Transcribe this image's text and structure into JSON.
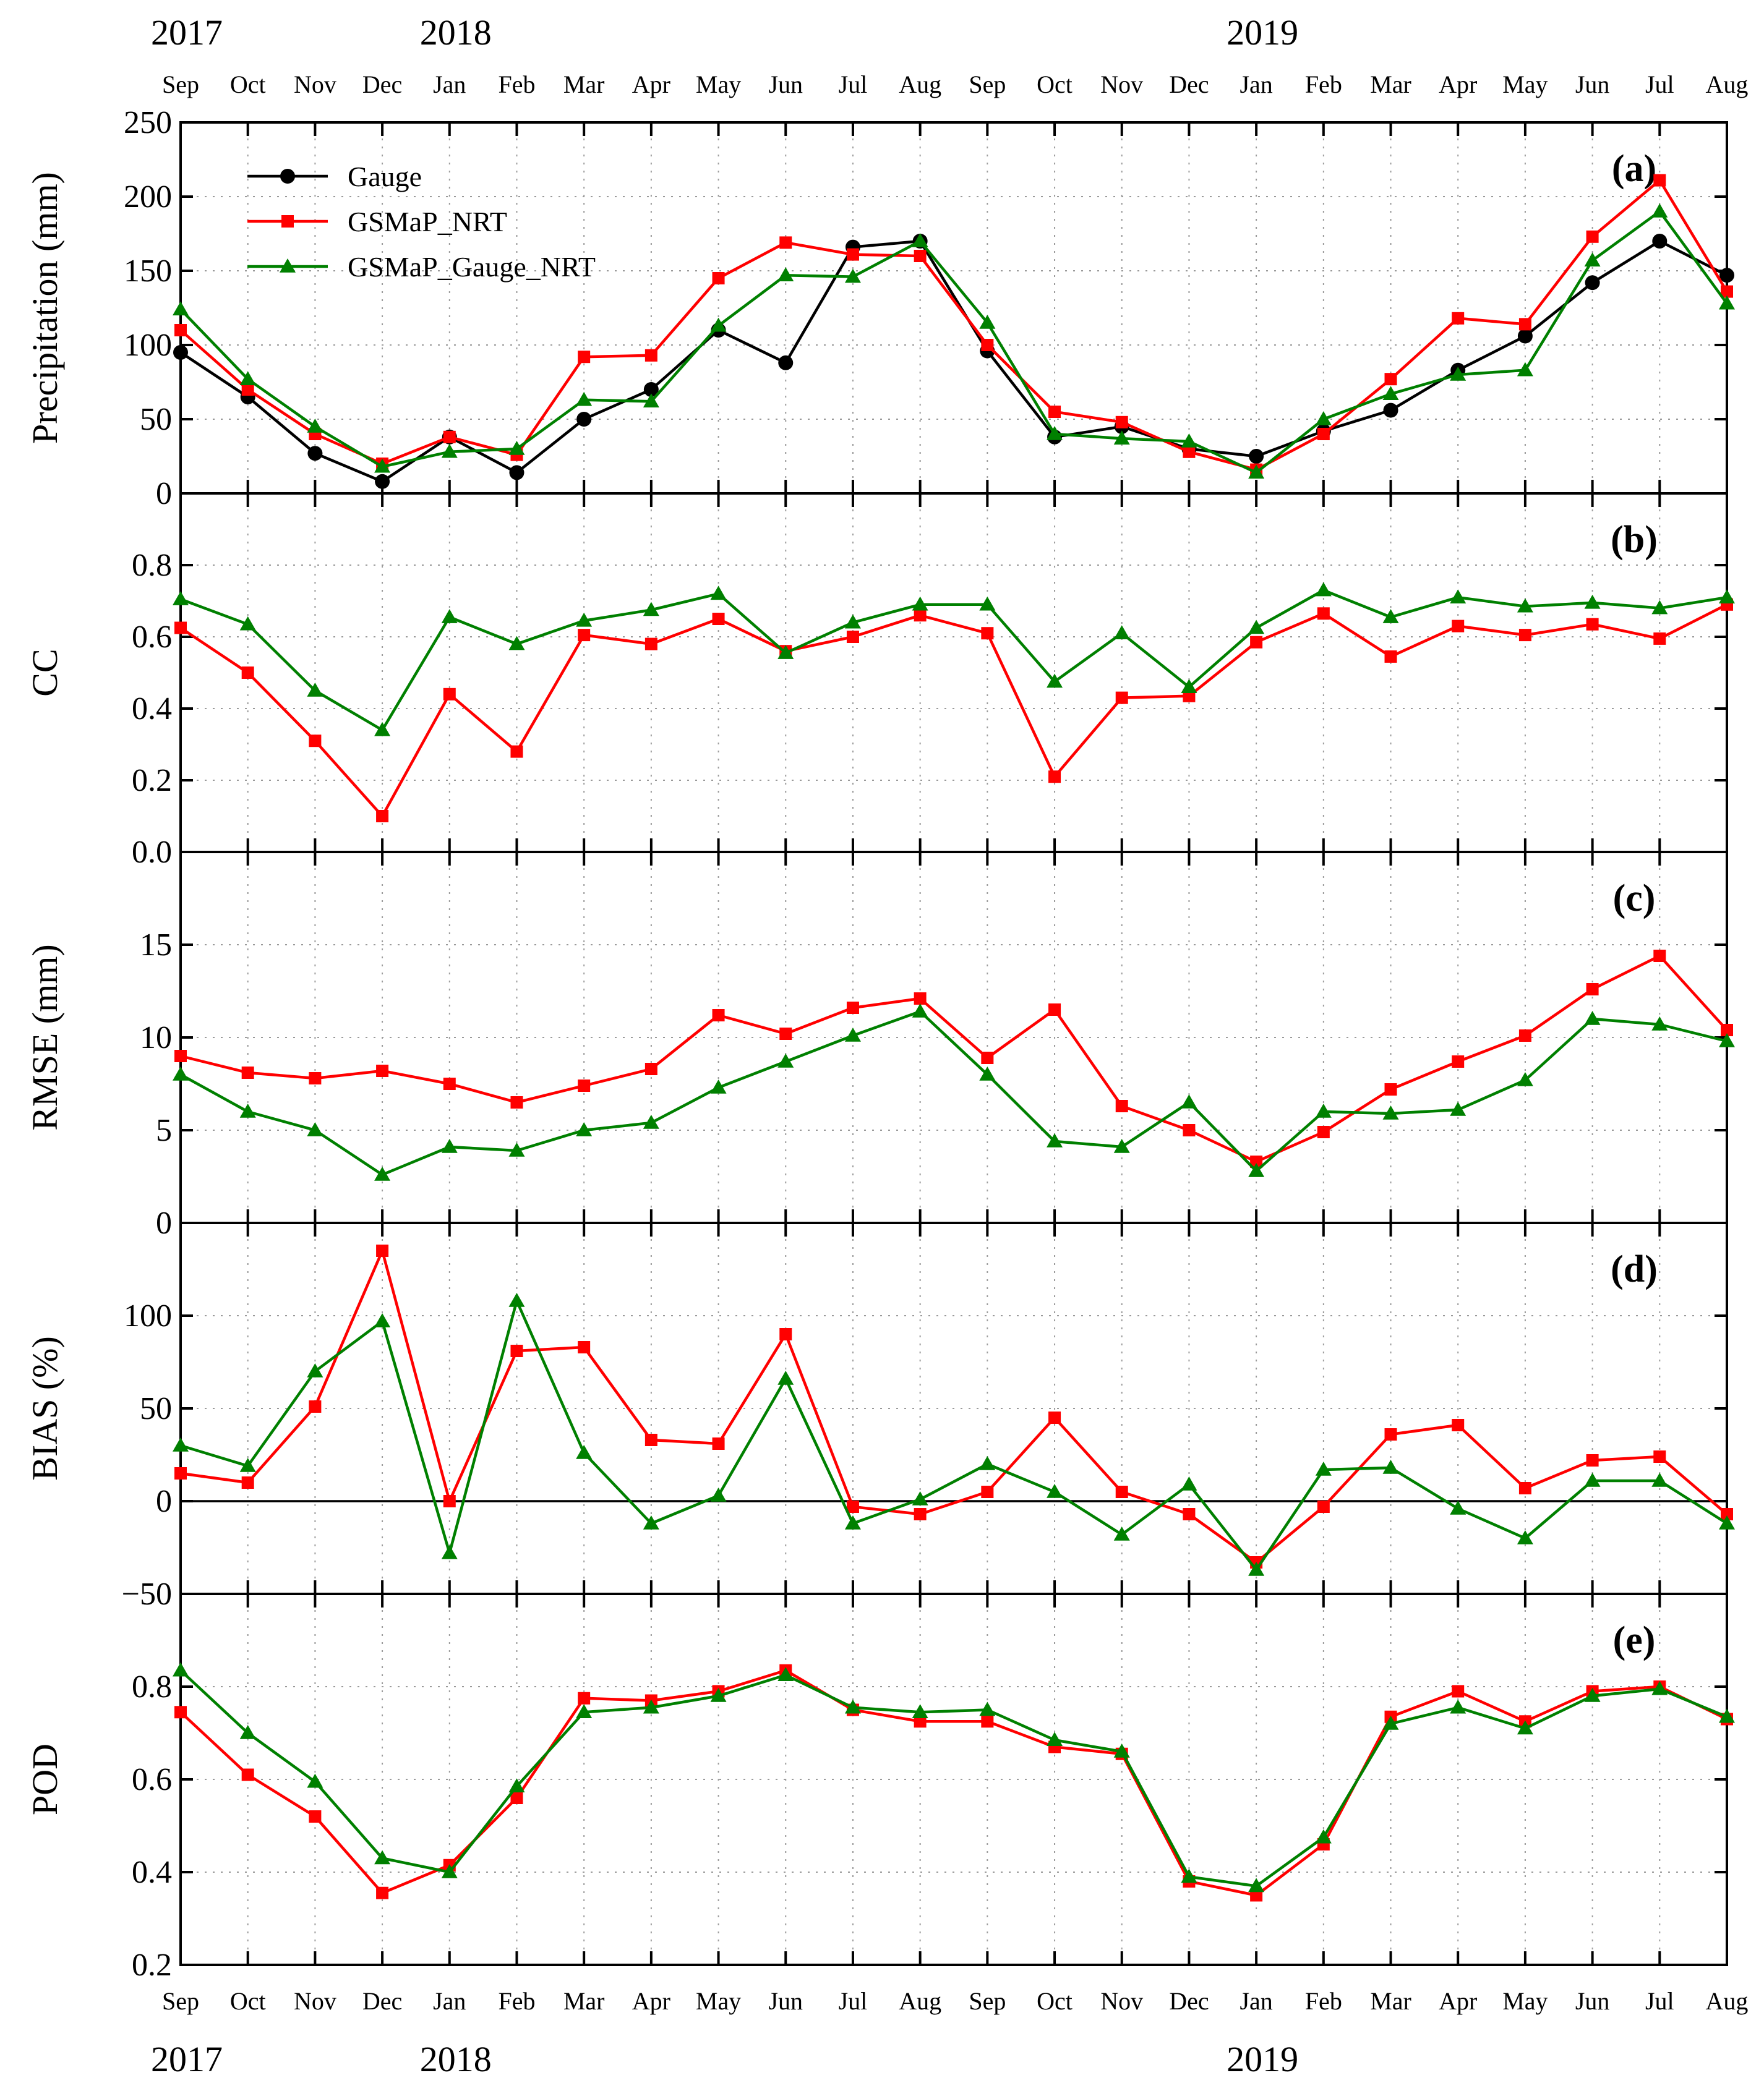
{
  "months": [
    "Sep",
    "Oct",
    "Nov",
    "Dec",
    "Jan",
    "Feb",
    "Mar",
    "Apr",
    "May",
    "Jun",
    "Jul",
    "Aug",
    "Sep",
    "Oct",
    "Nov",
    "Dec",
    "Jan",
    "Feb",
    "Mar",
    "Apr",
    "May",
    "Jun",
    "Jul",
    "Aug"
  ],
  "years": [
    {
      "label": "2017",
      "index": 0
    },
    {
      "label": "2018",
      "index": 4
    },
    {
      "label": "2019",
      "index": 16
    }
  ],
  "colors": {
    "gauge": "#000000",
    "nrt": "#ff0000",
    "gauge_nrt": "#008000"
  },
  "legend": [
    {
      "name": "Gauge",
      "color": "#000000",
      "marker": "circle"
    },
    {
      "name": "GSMaP_NRT",
      "color": "#ff0000",
      "marker": "square"
    },
    {
      "name": "GSMaP_Gauge_NRT",
      "color": "#008000",
      "marker": "triangle"
    }
  ],
  "chart_data": [
    {
      "type": "line",
      "tag": "(a)",
      "ylabel": "Precipitation (mm)",
      "ylim": [
        0,
        250
      ],
      "yticks": [
        0,
        50,
        100,
        150,
        200,
        250
      ],
      "ydecimals": 0,
      "legend_position": "top-left",
      "series": [
        {
          "name": "Gauge",
          "color": "#000000",
          "marker": "circle",
          "values": [
            95,
            65,
            27,
            8,
            38,
            14,
            50,
            70,
            110,
            88,
            166,
            170,
            96,
            38,
            45,
            30,
            25,
            42,
            56,
            83,
            106,
            142,
            170,
            147
          ]
        },
        {
          "name": "GSMaP_NRT",
          "color": "#ff0000",
          "marker": "square",
          "values": [
            110,
            70,
            40,
            20,
            38,
            26,
            92,
            93,
            145,
            169,
            161,
            160,
            100,
            55,
            48,
            28,
            16,
            40,
            77,
            118,
            114,
            173,
            211,
            136
          ]
        },
        {
          "name": "GSMaP_Gauge_NRT",
          "color": "#008000",
          "marker": "triangle",
          "values": [
            124,
            77,
            45,
            18,
            28,
            30,
            63,
            62,
            113,
            147,
            146,
            170,
            115,
            40,
            37,
            35,
            14,
            50,
            67,
            80,
            83,
            157,
            190,
            128
          ]
        }
      ]
    },
    {
      "type": "line",
      "tag": "(b)",
      "ylabel": "CC",
      "ylim": [
        0,
        1.0
      ],
      "yticks": [
        0.0,
        0.2,
        0.4,
        0.6,
        0.8
      ],
      "ydecimals": 1,
      "series": [
        {
          "name": "GSMaP_NRT",
          "color": "#ff0000",
          "marker": "square",
          "values": [
            0.625,
            0.5,
            0.31,
            0.1,
            0.44,
            0.28,
            0.605,
            0.58,
            0.65,
            0.56,
            0.6,
            0.66,
            0.61,
            0.21,
            0.43,
            0.435,
            0.585,
            0.665,
            0.545,
            0.63,
            0.605,
            0.635,
            0.595,
            0.69
          ]
        },
        {
          "name": "GSMaP_Gauge_NRT",
          "color": "#008000",
          "marker": "triangle",
          "values": [
            0.705,
            0.635,
            0.45,
            0.34,
            0.655,
            0.58,
            0.645,
            0.675,
            0.72,
            0.555,
            0.64,
            0.69,
            0.69,
            0.475,
            0.61,
            0.46,
            0.625,
            0.73,
            0.655,
            0.71,
            0.685,
            0.695,
            0.68,
            0.71
          ]
        }
      ]
    },
    {
      "type": "line",
      "tag": "(c)",
      "ylabel": "RMSE (mm)",
      "ylim": [
        0,
        20
      ],
      "yticks": [
        0,
        5,
        10,
        15
      ],
      "ydecimals": 0,
      "series": [
        {
          "name": "GSMaP_NRT",
          "color": "#ff0000",
          "marker": "square",
          "values": [
            9.0,
            8.1,
            7.8,
            8.2,
            7.5,
            6.5,
            7.4,
            8.3,
            11.2,
            10.2,
            11.6,
            12.1,
            8.9,
            11.5,
            6.3,
            5.0,
            3.3,
            4.9,
            7.2,
            8.7,
            10.1,
            12.6,
            14.4,
            10.4
          ]
        },
        {
          "name": "GSMaP_Gauge_NRT",
          "color": "#008000",
          "marker": "triangle",
          "values": [
            8.0,
            6.0,
            5.0,
            2.6,
            4.1,
            3.9,
            5.0,
            5.4,
            7.3,
            8.7,
            10.1,
            11.4,
            8.0,
            4.4,
            4.1,
            6.5,
            2.8,
            6.0,
            5.9,
            6.1,
            7.7,
            11.0,
            10.7,
            9.8
          ]
        }
      ]
    },
    {
      "type": "line",
      "tag": "(d)",
      "ylabel": "BIAS (%)",
      "ylim": [
        -50,
        150
      ],
      "yticks": [
        -50,
        0,
        50,
        100
      ],
      "ydecimals": 0,
      "zero_line": true,
      "series": [
        {
          "name": "GSMaP_NRT",
          "color": "#ff0000",
          "marker": "square",
          "values": [
            15,
            10,
            51,
            135,
            0,
            81,
            83,
            33,
            31,
            90,
            -3,
            -7,
            5,
            45,
            5,
            -7,
            -33,
            -3,
            36,
            41,
            7,
            22,
            24,
            -7
          ]
        },
        {
          "name": "GSMaP_Gauge_NRT",
          "color": "#008000",
          "marker": "triangle",
          "values": [
            30,
            19,
            70,
            97,
            -28,
            108,
            26,
            -12,
            3,
            66,
            -12,
            1,
            20,
            5,
            -18,
            9,
            -37,
            17,
            18,
            -4,
            -20,
            11,
            11,
            -12
          ]
        }
      ]
    },
    {
      "type": "line",
      "tag": "(e)",
      "ylabel": "POD",
      "ylim": [
        0.2,
        1.0
      ],
      "yticks": [
        0.2,
        0.4,
        0.6,
        0.8
      ],
      "ydecimals": 1,
      "series": [
        {
          "name": "GSMaP_NRT",
          "color": "#ff0000",
          "marker": "square",
          "values": [
            0.745,
            0.61,
            0.52,
            0.355,
            0.415,
            0.56,
            0.775,
            0.77,
            0.79,
            0.835,
            0.75,
            0.725,
            0.725,
            0.67,
            0.655,
            0.38,
            0.35,
            0.46,
            0.735,
            0.79,
            0.725,
            0.79,
            0.8,
            0.73
          ]
        },
        {
          "name": "GSMaP_Gauge_NRT",
          "color": "#008000",
          "marker": "triangle",
          "values": [
            0.835,
            0.7,
            0.595,
            0.43,
            0.4,
            0.585,
            0.745,
            0.755,
            0.78,
            0.825,
            0.755,
            0.745,
            0.75,
            0.685,
            0.66,
            0.39,
            0.37,
            0.475,
            0.72,
            0.755,
            0.71,
            0.78,
            0.795,
            0.735
          ]
        }
      ]
    }
  ]
}
